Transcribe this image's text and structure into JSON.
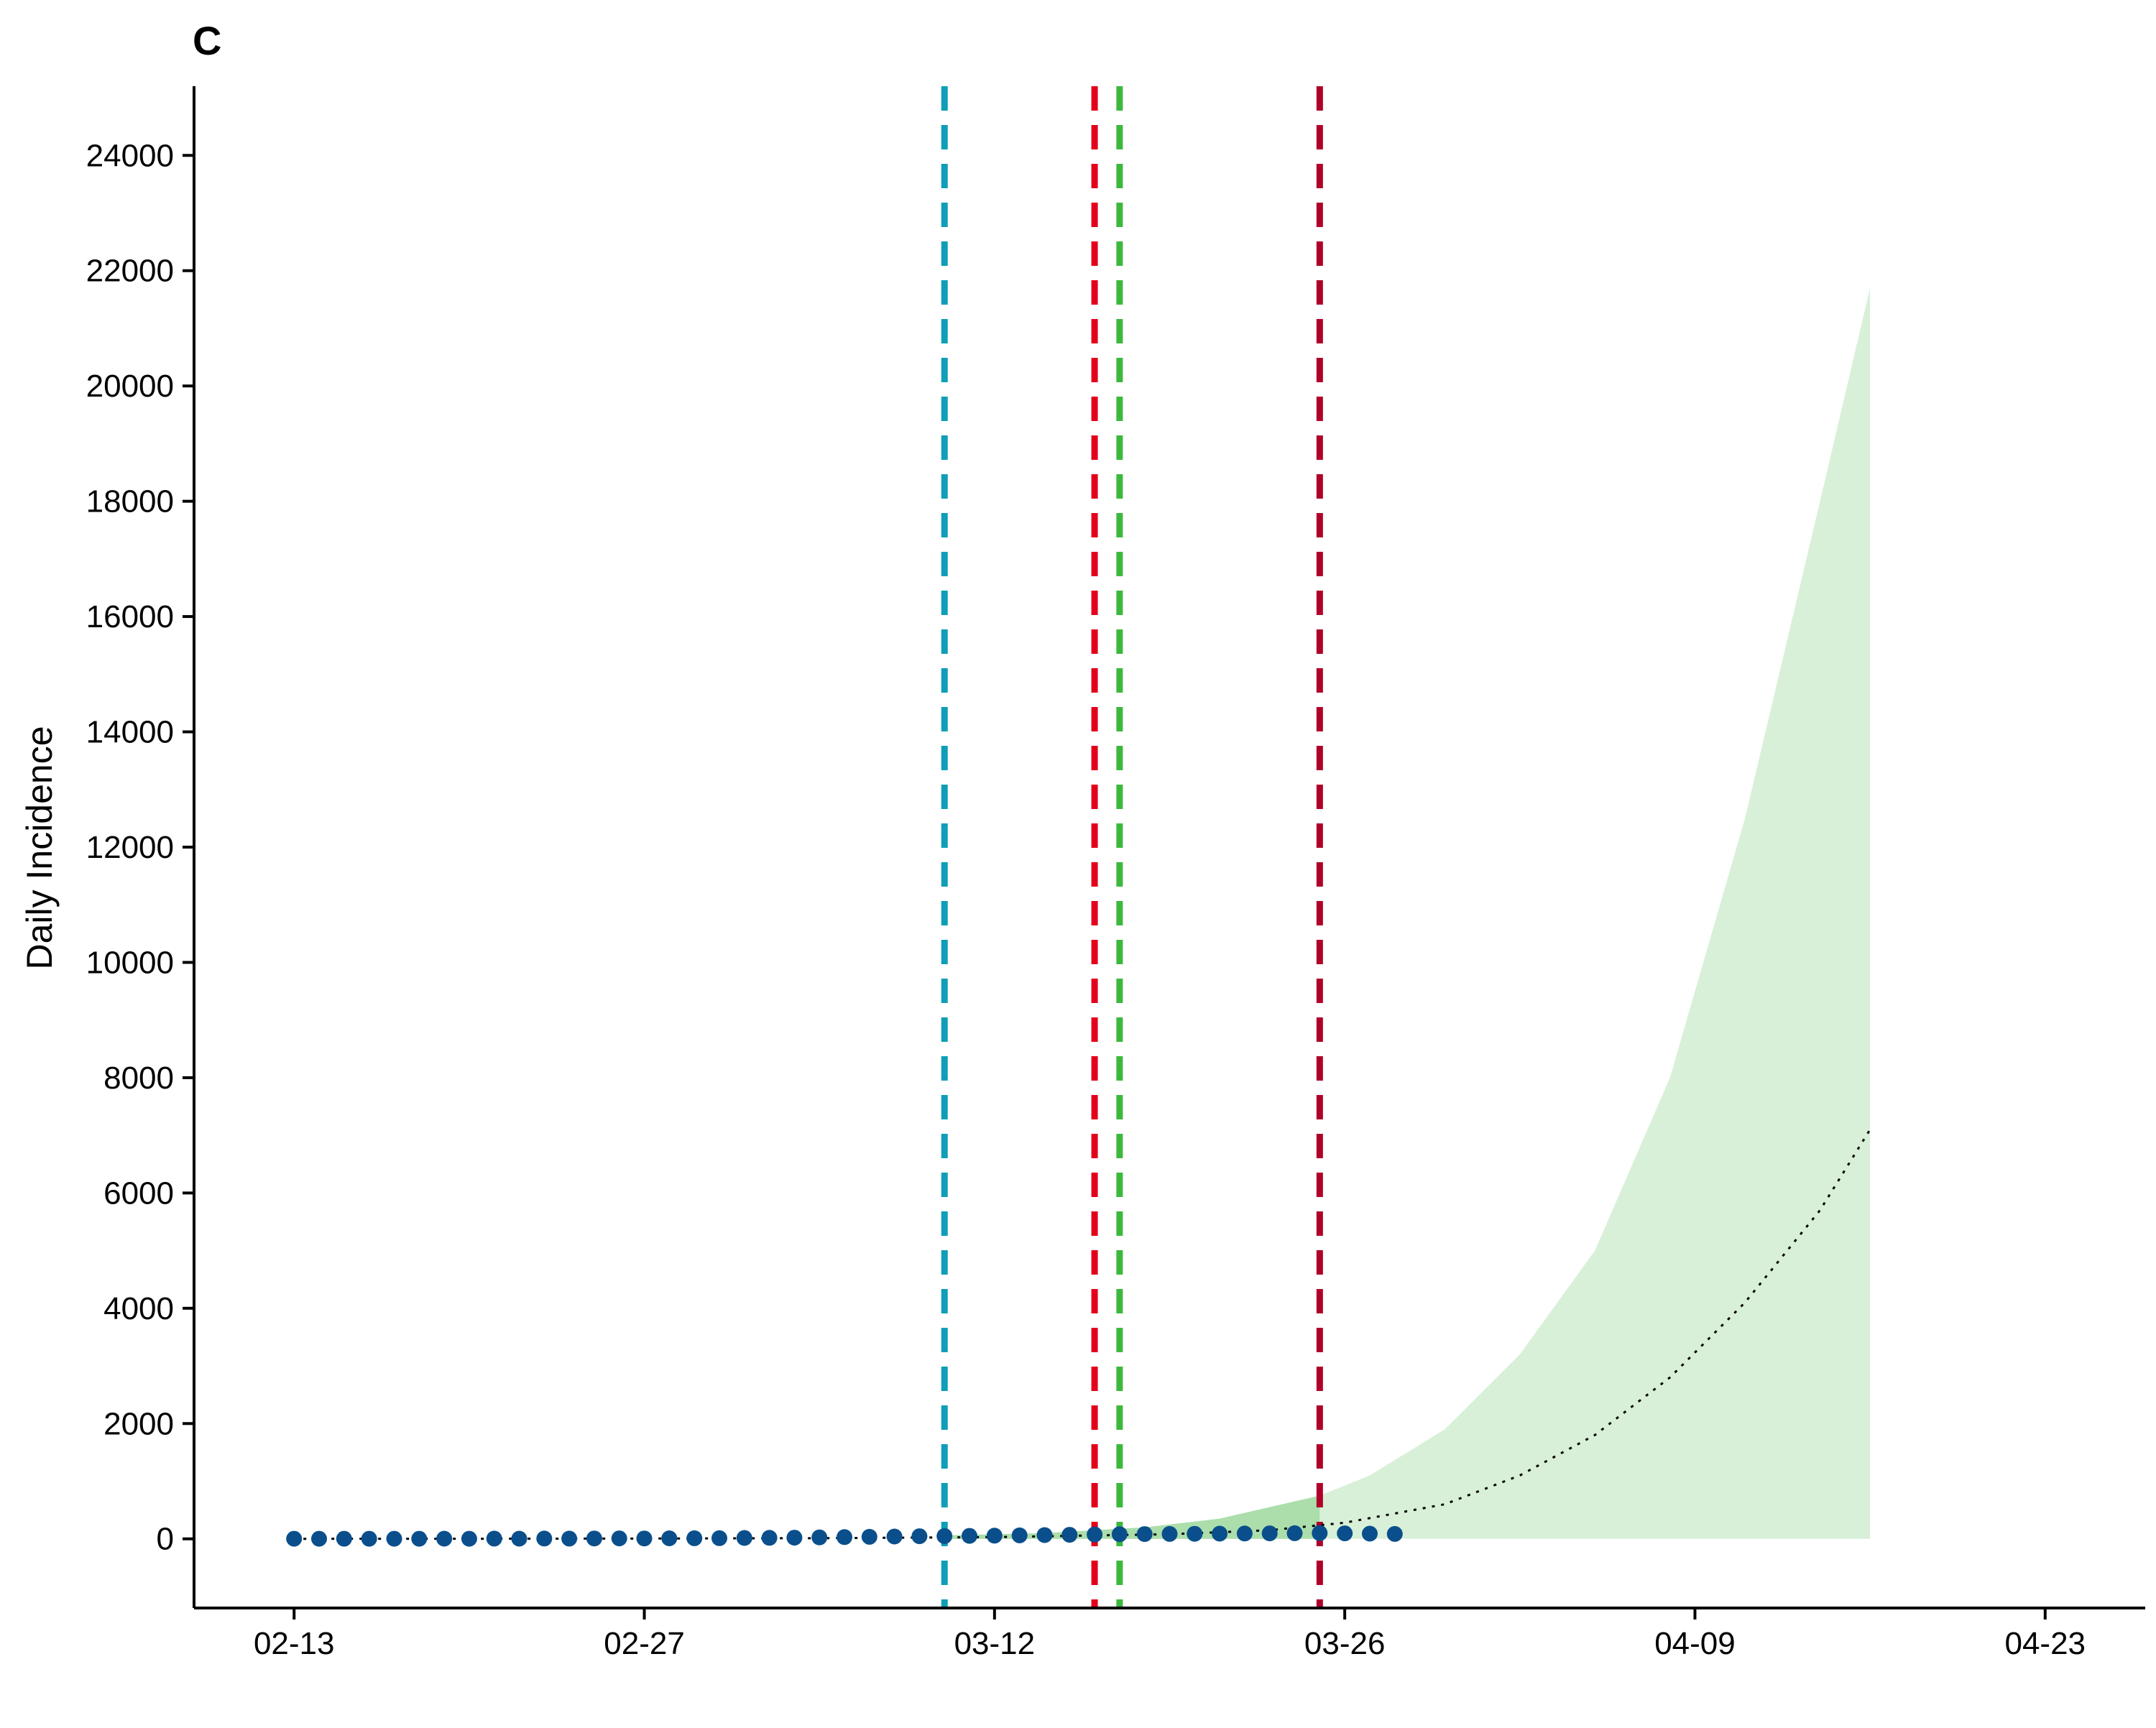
{
  "chart_data": {
    "type": "line",
    "panel_label": "C",
    "ylabel": "Daily Incidence",
    "xlabel": "",
    "x_axis": {
      "type": "date",
      "ticks": [
        "02-13",
        "02-27",
        "03-12",
        "03-26",
        "04-09",
        "04-23"
      ],
      "range": [
        "02-09",
        "04-27"
      ]
    },
    "y_axis": {
      "ticks": [
        0,
        2000,
        4000,
        6000,
        8000,
        10000,
        12000,
        14000,
        16000,
        18000,
        20000,
        22000,
        24000
      ],
      "range": [
        -1200,
        25200
      ]
    },
    "grid": false,
    "legend": "none",
    "vertical_lines": [
      {
        "date": "03-10",
        "color": "#0E9EB8",
        "style": "dashed"
      },
      {
        "date": "03-16",
        "color": "#E3001B",
        "style": "dashed"
      },
      {
        "date": "03-17",
        "color": "#3DB83D",
        "style": "dashed"
      },
      {
        "date": "03-25",
        "color": "#B0002A",
        "style": "dashed"
      }
    ],
    "observed": {
      "color": "#0A4F8C",
      "dates": [
        "02-13",
        "02-14",
        "02-15",
        "02-16",
        "02-17",
        "02-18",
        "02-19",
        "02-20",
        "02-21",
        "02-22",
        "02-23",
        "02-24",
        "02-25",
        "02-26",
        "02-27",
        "02-28",
        "02-29",
        "03-01",
        "03-02",
        "03-03",
        "03-04",
        "03-05",
        "03-06",
        "03-07",
        "03-08",
        "03-09",
        "03-10",
        "03-11",
        "03-12",
        "03-13",
        "03-14",
        "03-15",
        "03-16",
        "03-17",
        "03-18",
        "03-19",
        "03-20",
        "03-21",
        "03-22",
        "03-23",
        "03-24",
        "03-25",
        "03-26",
        "03-27",
        "03-28"
      ],
      "values": [
        1,
        1,
        2,
        1,
        2,
        2,
        3,
        2,
        4,
        3,
        5,
        4,
        6,
        8,
        7,
        9,
        10,
        12,
        15,
        18,
        20,
        25,
        30,
        35,
        40,
        45,
        48,
        52,
        55,
        60,
        65,
        70,
        75,
        80,
        82,
        85,
        88,
        90,
        92,
        95,
        98,
        100,
        95,
        90,
        85
      ]
    },
    "fitted_line": {
      "color": "#000000",
      "style": "dotted",
      "dates": [
        "02-13",
        "02-20",
        "02-27",
        "03-05",
        "03-12",
        "03-19",
        "03-23",
        "03-26",
        "03-30",
        "04-02",
        "04-05",
        "04-08",
        "04-11",
        "04-14",
        "04-16"
      ],
      "values": [
        0,
        2,
        5,
        12,
        30,
        80,
        150,
        280,
        600,
        1100,
        1800,
        2800,
        4100,
        5700,
        7100
      ]
    },
    "confidence_band": {
      "color": "#D8F0D8",
      "dark_color": "#9CD89C",
      "dark_until": "03-25",
      "dates": [
        "03-10",
        "03-14",
        "03-18",
        "03-21",
        "03-25",
        "03-27",
        "03-30",
        "04-02",
        "04-05",
        "04-08",
        "04-11",
        "04-14",
        "04-16"
      ],
      "lower": [
        0,
        0,
        0,
        0,
        0,
        0,
        0,
        0,
        0,
        0,
        0,
        0,
        0
      ],
      "upper": [
        60,
        100,
        200,
        350,
        750,
        1100,
        1900,
        3200,
        5000,
        8000,
        12500,
        18000,
        21700
      ]
    }
  }
}
